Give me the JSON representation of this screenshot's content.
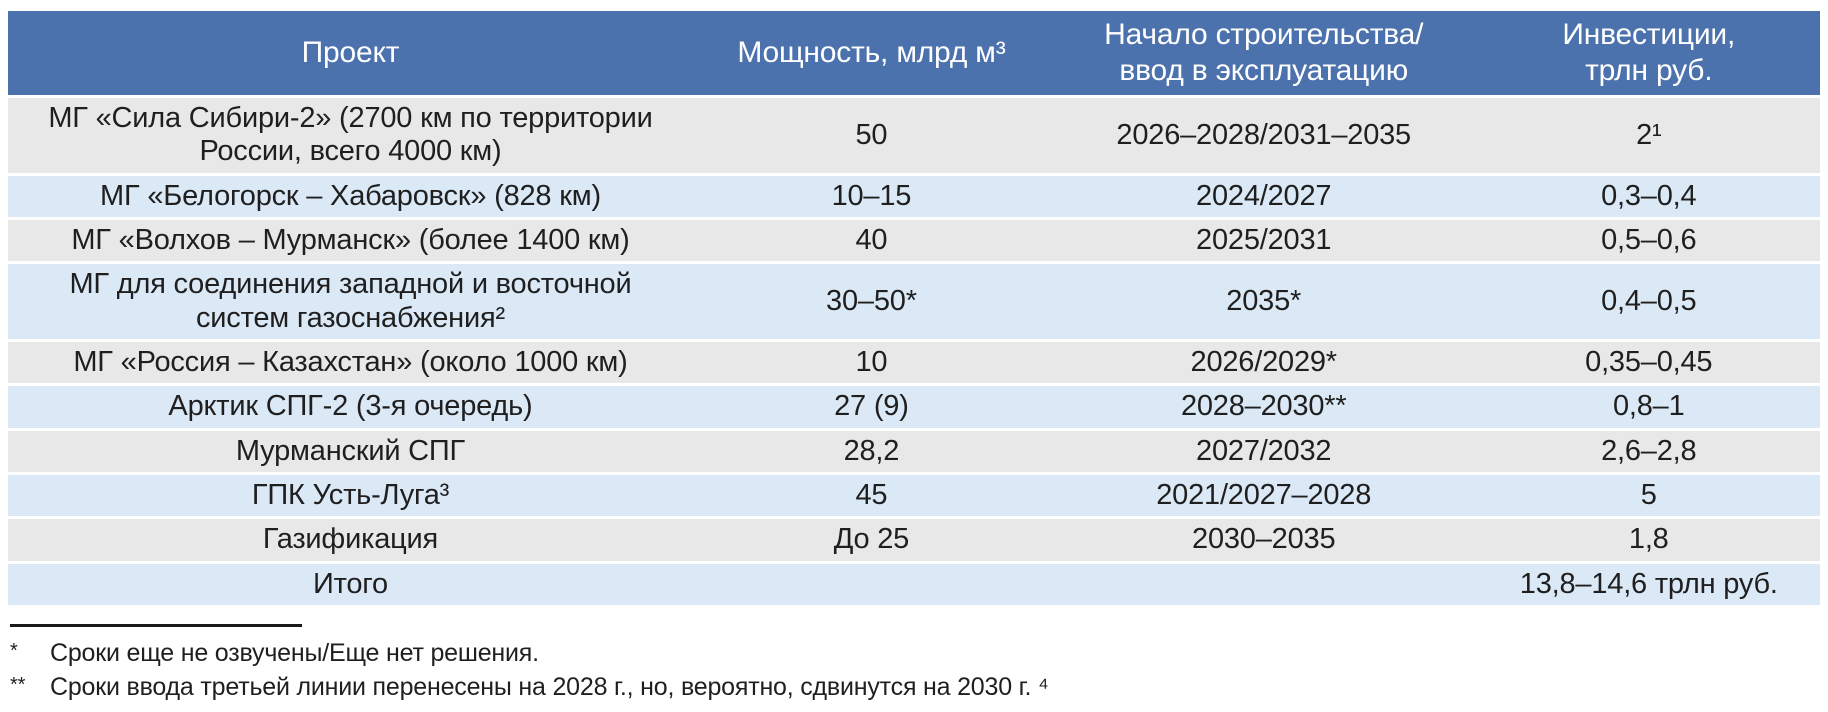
{
  "colors": {
    "header_bg": "#4C72AE",
    "header_text": "#FFFFFF",
    "row_gray": "#E9E8E8",
    "row_blue": "#DBE8F6",
    "body_text": "#1F1F1F",
    "divider": "#1A1A1A",
    "page_bg": "#FFFFFF"
  },
  "table": {
    "columns": [
      {
        "label": "Проект"
      },
      {
        "label": "Мощность, млрд м³"
      },
      {
        "label": "Начало строительства/\nввод в эксплуатацию"
      },
      {
        "label": "Инвестиции,\nтрлн руб."
      }
    ],
    "rows": [
      {
        "project": "МГ «Сила Сибири-2» (2700 км по территории\nРоссии, всего 4000 км)",
        "capacity": "50",
        "dates": "2026–2028/2031–2035",
        "investment": "2¹"
      },
      {
        "project": "МГ «Белогорск – Хабаровск» (828 км)",
        "capacity": "10–15",
        "dates": "2024/2027",
        "investment": "0,3–0,4"
      },
      {
        "project": "МГ «Волхов – Мурманск» (более 1400 км)",
        "capacity": "40",
        "dates": "2025/2031",
        "investment": "0,5–0,6"
      },
      {
        "project": "МГ для соединения западной и восточной\nсистем газоснабжения²",
        "capacity": "30–50*",
        "dates": "2035*",
        "investment": "0,4–0,5"
      },
      {
        "project": "МГ «Россия – Казахстан» (около 1000 км)",
        "capacity": "10",
        "dates": "2026/2029*",
        "investment": "0,35–0,45"
      },
      {
        "project": "Арктик СПГ-2 (3-я очередь)",
        "capacity": "27 (9)",
        "dates": "2028–2030**",
        "investment": "0,8–1"
      },
      {
        "project": "Мурманский СПГ",
        "capacity": "28,2",
        "dates": "2027/2032",
        "investment": "2,6–2,8"
      },
      {
        "project": "ГПК Усть-Луга³",
        "capacity": "45",
        "dates": "2021/2027–2028",
        "investment": "5"
      },
      {
        "project": "Газификация",
        "capacity": "До 25",
        "dates": "2030–2035",
        "investment": "1,8"
      },
      {
        "project": "Итого",
        "capacity": "",
        "dates": "",
        "investment": "13,8–14,6 трлн руб."
      }
    ]
  },
  "footnotes": [
    {
      "marker": "*",
      "text": "Сроки еще не озвучены/Еще нет решения."
    },
    {
      "marker": "**",
      "text": "Сроки ввода третьей линии перенесены на 2028 г., но, вероятно, сдвинутся на 2030 г. ⁴"
    }
  ]
}
